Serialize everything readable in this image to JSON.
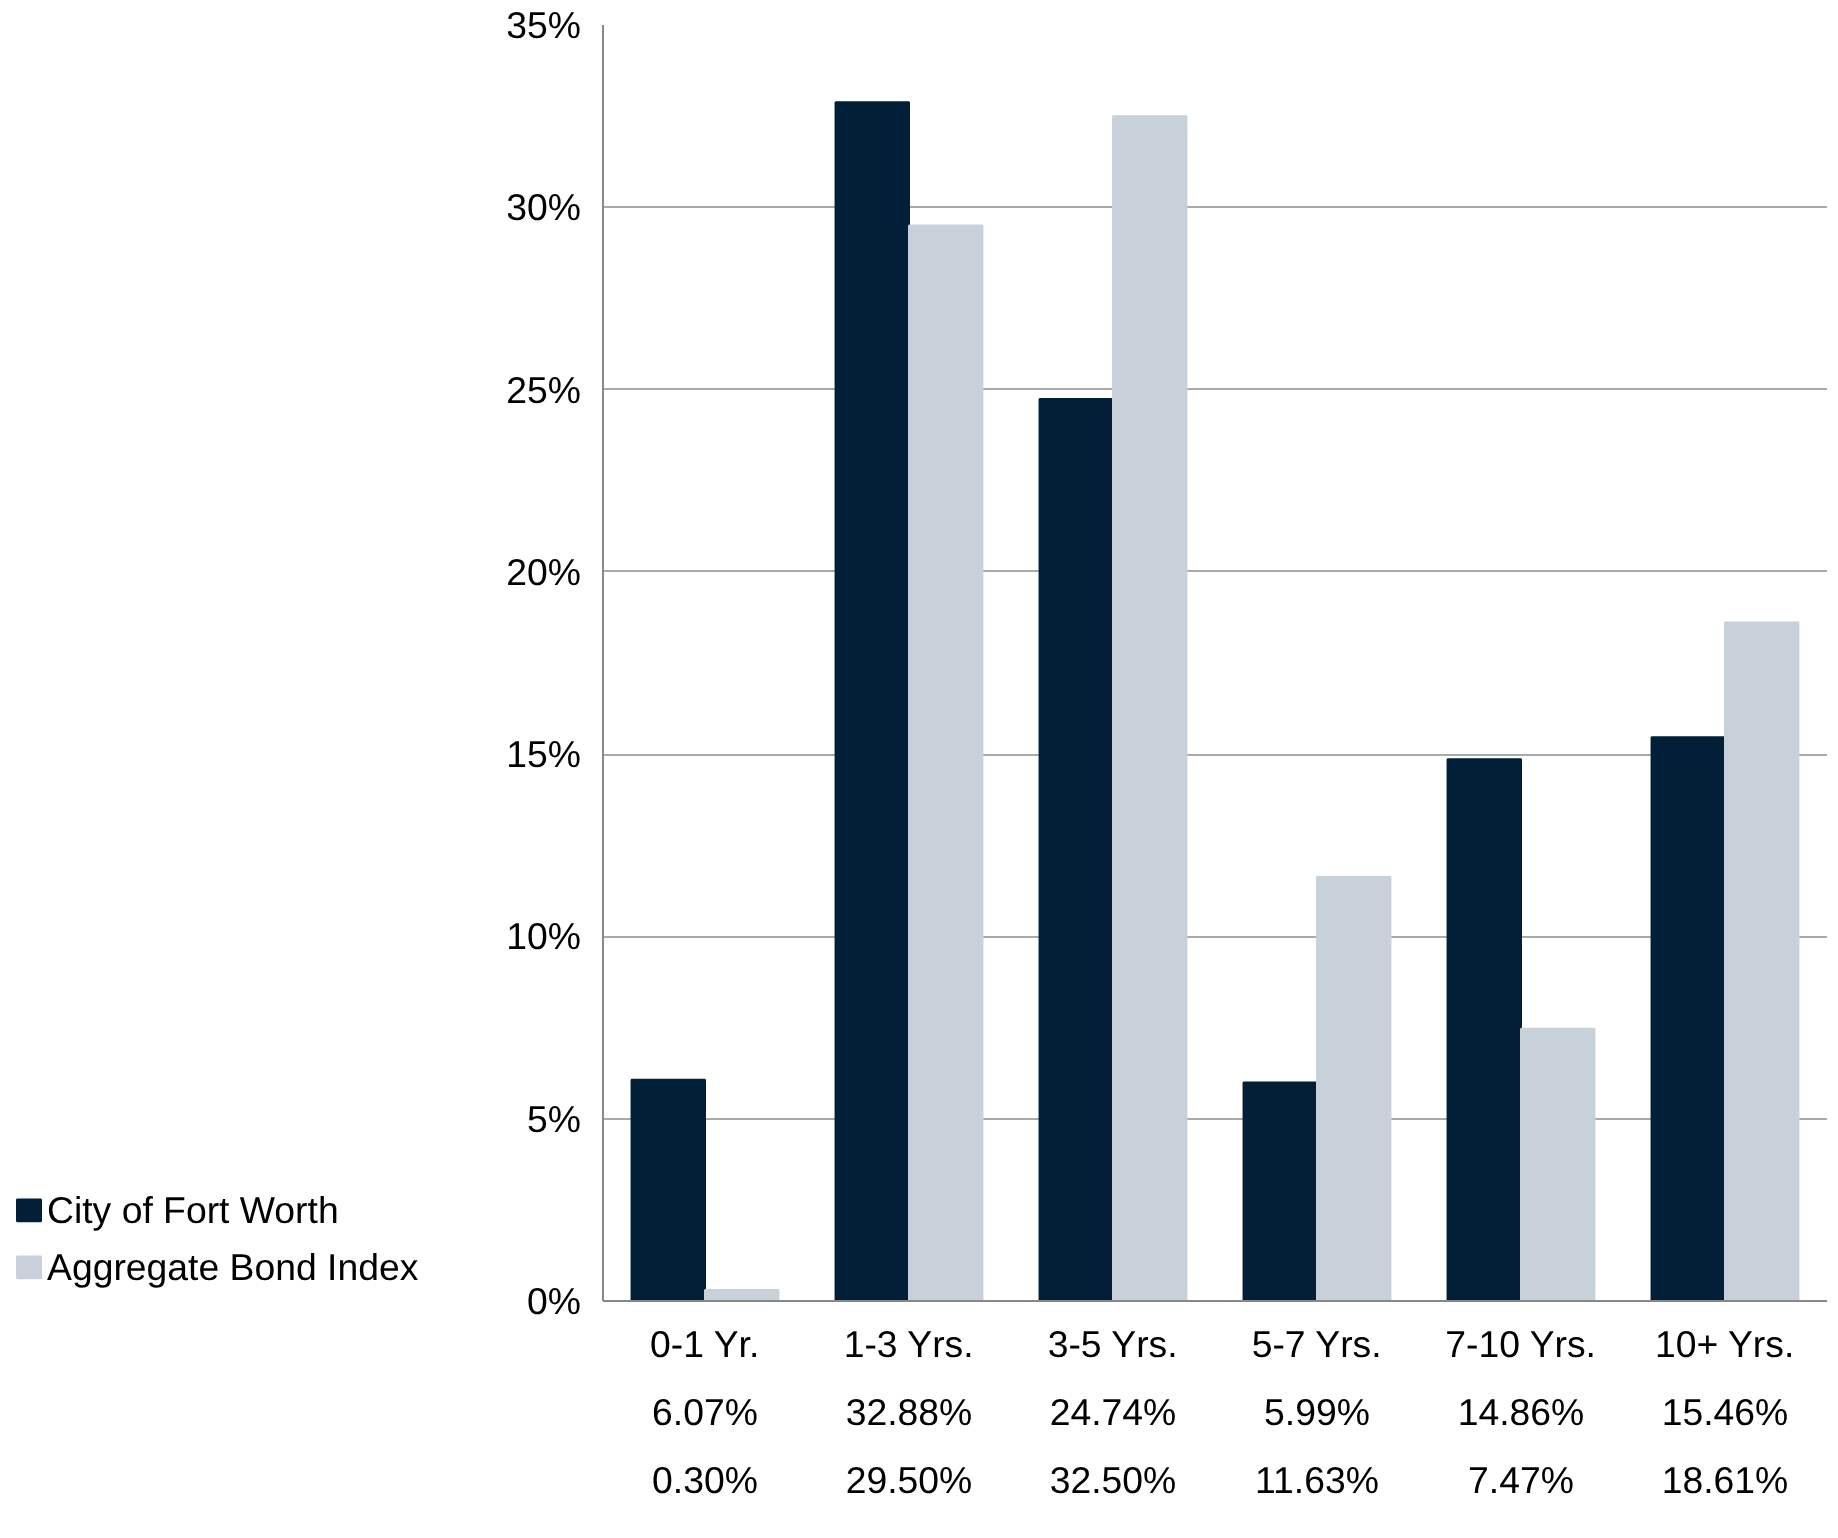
{
  "chart_data": {
    "type": "bar",
    "categories": [
      "0-1 Yr.",
      "1-3 Yrs.",
      "3-5 Yrs.",
      "5-7 Yrs.",
      "7-10 Yrs.",
      "10+ Yrs."
    ],
    "series": [
      {
        "name": "City of Fort Worth",
        "color": "#011f36",
        "values": [
          6.07,
          32.88,
          24.74,
          5.99,
          14.86,
          15.46
        ],
        "value_labels": [
          "6.07%",
          "32.88%",
          "24.74%",
          "5.99%",
          "14.86%",
          "15.46%"
        ]
      },
      {
        "name": "Aggregate Bond Index",
        "color": "#c8d0d9",
        "values": [
          0.3,
          29.5,
          32.5,
          11.63,
          7.47,
          18.61
        ],
        "value_labels": [
          "0.30%",
          "29.50%",
          "32.50%",
          "11.63%",
          "7.47%",
          "18.61%"
        ]
      }
    ],
    "ylim": [
      0,
      35
    ],
    "yticks": [
      {
        "value": 0,
        "label": "0%"
      },
      {
        "value": 5,
        "label": "5%"
      },
      {
        "value": 10,
        "label": "10%"
      },
      {
        "value": 15,
        "label": "15%"
      },
      {
        "value": 20,
        "label": "20%"
      },
      {
        "value": 25,
        "label": "25%"
      },
      {
        "value": 30,
        "label": "30%"
      },
      {
        "value": 35,
        "label": "35%"
      }
    ],
    "grid": "y",
    "legend": "bottom"
  }
}
